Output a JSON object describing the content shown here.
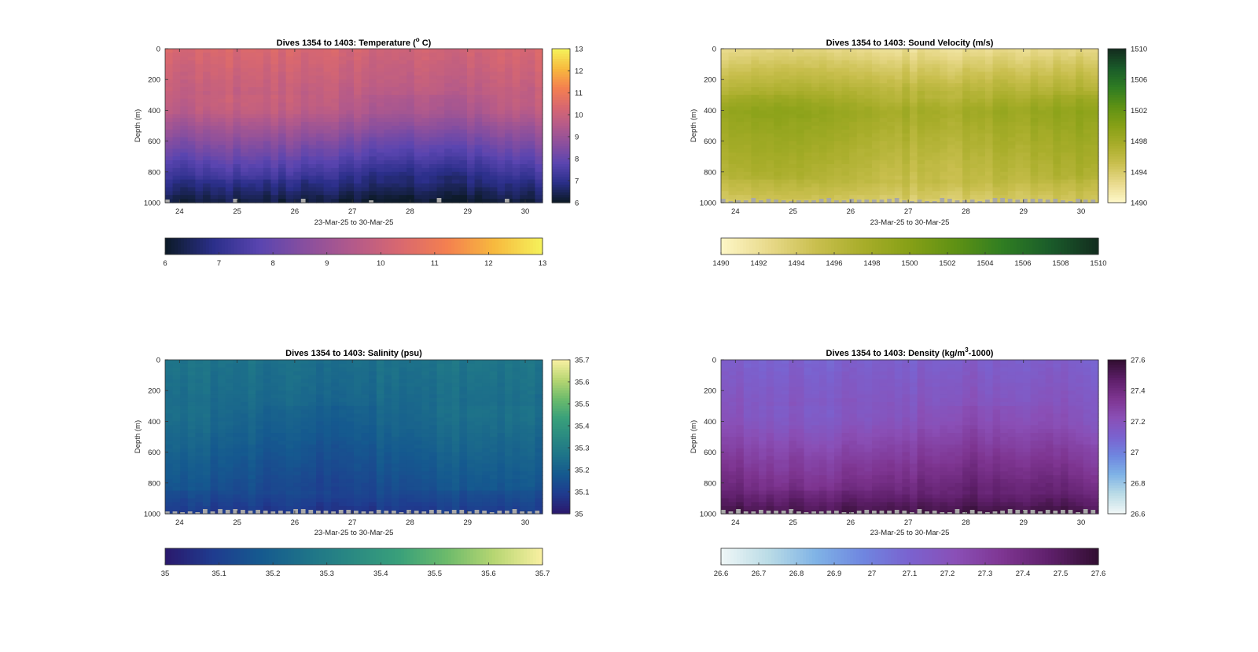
{
  "figure": {
    "x_range_label": "23-Mar-25 to 30-Mar-25"
  },
  "chart_data": [
    {
      "type": "heatmap",
      "title_main": "Dives 1354 to 1403: Temperature (",
      "title_sup": "o",
      "title_rest": " C)",
      "ylabel": "Depth (m)",
      "xlabel": "23-Mar-25 to 30-Mar-25",
      "x_ticks": [
        "24",
        "25",
        "26",
        "27",
        "28",
        "29",
        "30"
      ],
      "xlim": [
        23.75,
        30.3
      ],
      "y_ticks": [
        "0",
        "200",
        "400",
        "600",
        "800",
        "1000"
      ],
      "ylim": [
        0,
        1000
      ],
      "clim": [
        6,
        13
      ],
      "colorbar_ticks": [
        "6",
        "7",
        "8",
        "9",
        "10",
        "11",
        "12",
        "13"
      ],
      "colormap": [
        "#0d1b2a",
        "#2b2f8a",
        "#5a45b0",
        "#8a4f9e",
        "#b45a8a",
        "#d9686f",
        "#f4804f",
        "#f7b93e",
        "#f5f05a"
      ],
      "profile": {
        "surface": 10.3,
        "mid": 9.6,
        "deep": 7.0,
        "bottom": 6.2
      },
      "dive_count": 50
    },
    {
      "type": "heatmap",
      "title_main": "Dives 1354 to 1403: Sound Velocity (m/s)",
      "title_sup": "",
      "title_rest": "",
      "ylabel": "Depth (m)",
      "xlabel": "23-Mar-25 to 30-Mar-25",
      "x_ticks": [
        "24",
        "25",
        "26",
        "27",
        "28",
        "29",
        "30"
      ],
      "xlim": [
        23.75,
        30.3
      ],
      "y_ticks": [
        "0",
        "200",
        "400",
        "600",
        "800",
        "1000"
      ],
      "ylim": [
        0,
        1000
      ],
      "clim": [
        1490,
        1510
      ],
      "colorbar_ticks": [
        "1490",
        "1492",
        "1494",
        "1496",
        "1498",
        "1500",
        "1502",
        "1504",
        "1506",
        "1508",
        "1510"
      ],
      "colormap": [
        "#fdf6c5",
        "#e8d98a",
        "#c9bf4e",
        "#a8ad2a",
        "#86a016",
        "#5e9114",
        "#2f7d22",
        "#1a5c2a",
        "#132e1f"
      ],
      "profile": {
        "surface": 1492.5,
        "mid": 1498.5,
        "deep": 1496.0,
        "bottom": 1494.0
      },
      "dive_count": 50
    },
    {
      "type": "heatmap",
      "title_main": "Dives 1354 to 1403: Salinity (psu)",
      "title_sup": "",
      "title_rest": "",
      "ylabel": "Depth (m)",
      "xlabel": "23-Mar-25 to 30-Mar-25",
      "x_ticks": [
        "24",
        "25",
        "26",
        "27",
        "28",
        "29",
        "30"
      ],
      "xlim": [
        23.75,
        30.3
      ],
      "y_ticks": [
        "0",
        "200",
        "400",
        "600",
        "800",
        "1000"
      ],
      "ylim": [
        0,
        1000
      ],
      "clim": [
        35,
        35.7
      ],
      "colorbar_ticks": [
        "35",
        "35.1",
        "35.2",
        "35.3",
        "35.4",
        "35.5",
        "35.6",
        "35.7"
      ],
      "colormap": [
        "#2a1a6e",
        "#1f3c8f",
        "#15598f",
        "#1e7389",
        "#2a8a82",
        "#3aa17a",
        "#6dbb6b",
        "#b7d672",
        "#f7efa0"
      ],
      "profile": {
        "surface": 35.26,
        "mid": 35.22,
        "deep": 35.14,
        "bottom": 35.08
      },
      "dive_count": 50
    },
    {
      "type": "heatmap",
      "title_main": "Dives 1354 to 1403: Density (kg/m",
      "title_sup": "3",
      "title_rest": "-1000)",
      "ylabel": "Depth (m)",
      "xlabel": "23-Mar-25 to 30-Mar-25",
      "x_ticks": [
        "24",
        "25",
        "26",
        "27",
        "28",
        "29",
        "30"
      ],
      "xlim": [
        23.75,
        30.3
      ],
      "y_ticks": [
        "0",
        "200",
        "400",
        "600",
        "800",
        "1000"
      ],
      "ylim": [
        0,
        1000
      ],
      "clim": [
        26.6,
        27.6
      ],
      "colorbar_ticks": [
        "26.6",
        "26.7",
        "26.8",
        "26.9",
        "27",
        "27.1",
        "27.2",
        "27.3",
        "27.4",
        "27.5",
        "27.6"
      ],
      "colormap": [
        "#eef6f6",
        "#b9dbe6",
        "#7fb3e6",
        "#6f86e0",
        "#7a62cf",
        "#8a4fb6",
        "#7e3591",
        "#5e1f6a",
        "#330f33"
      ],
      "profile": {
        "surface": 27.12,
        "mid": 27.2,
        "deep": 27.42,
        "bottom": 27.55
      },
      "dive_count": 50
    }
  ]
}
